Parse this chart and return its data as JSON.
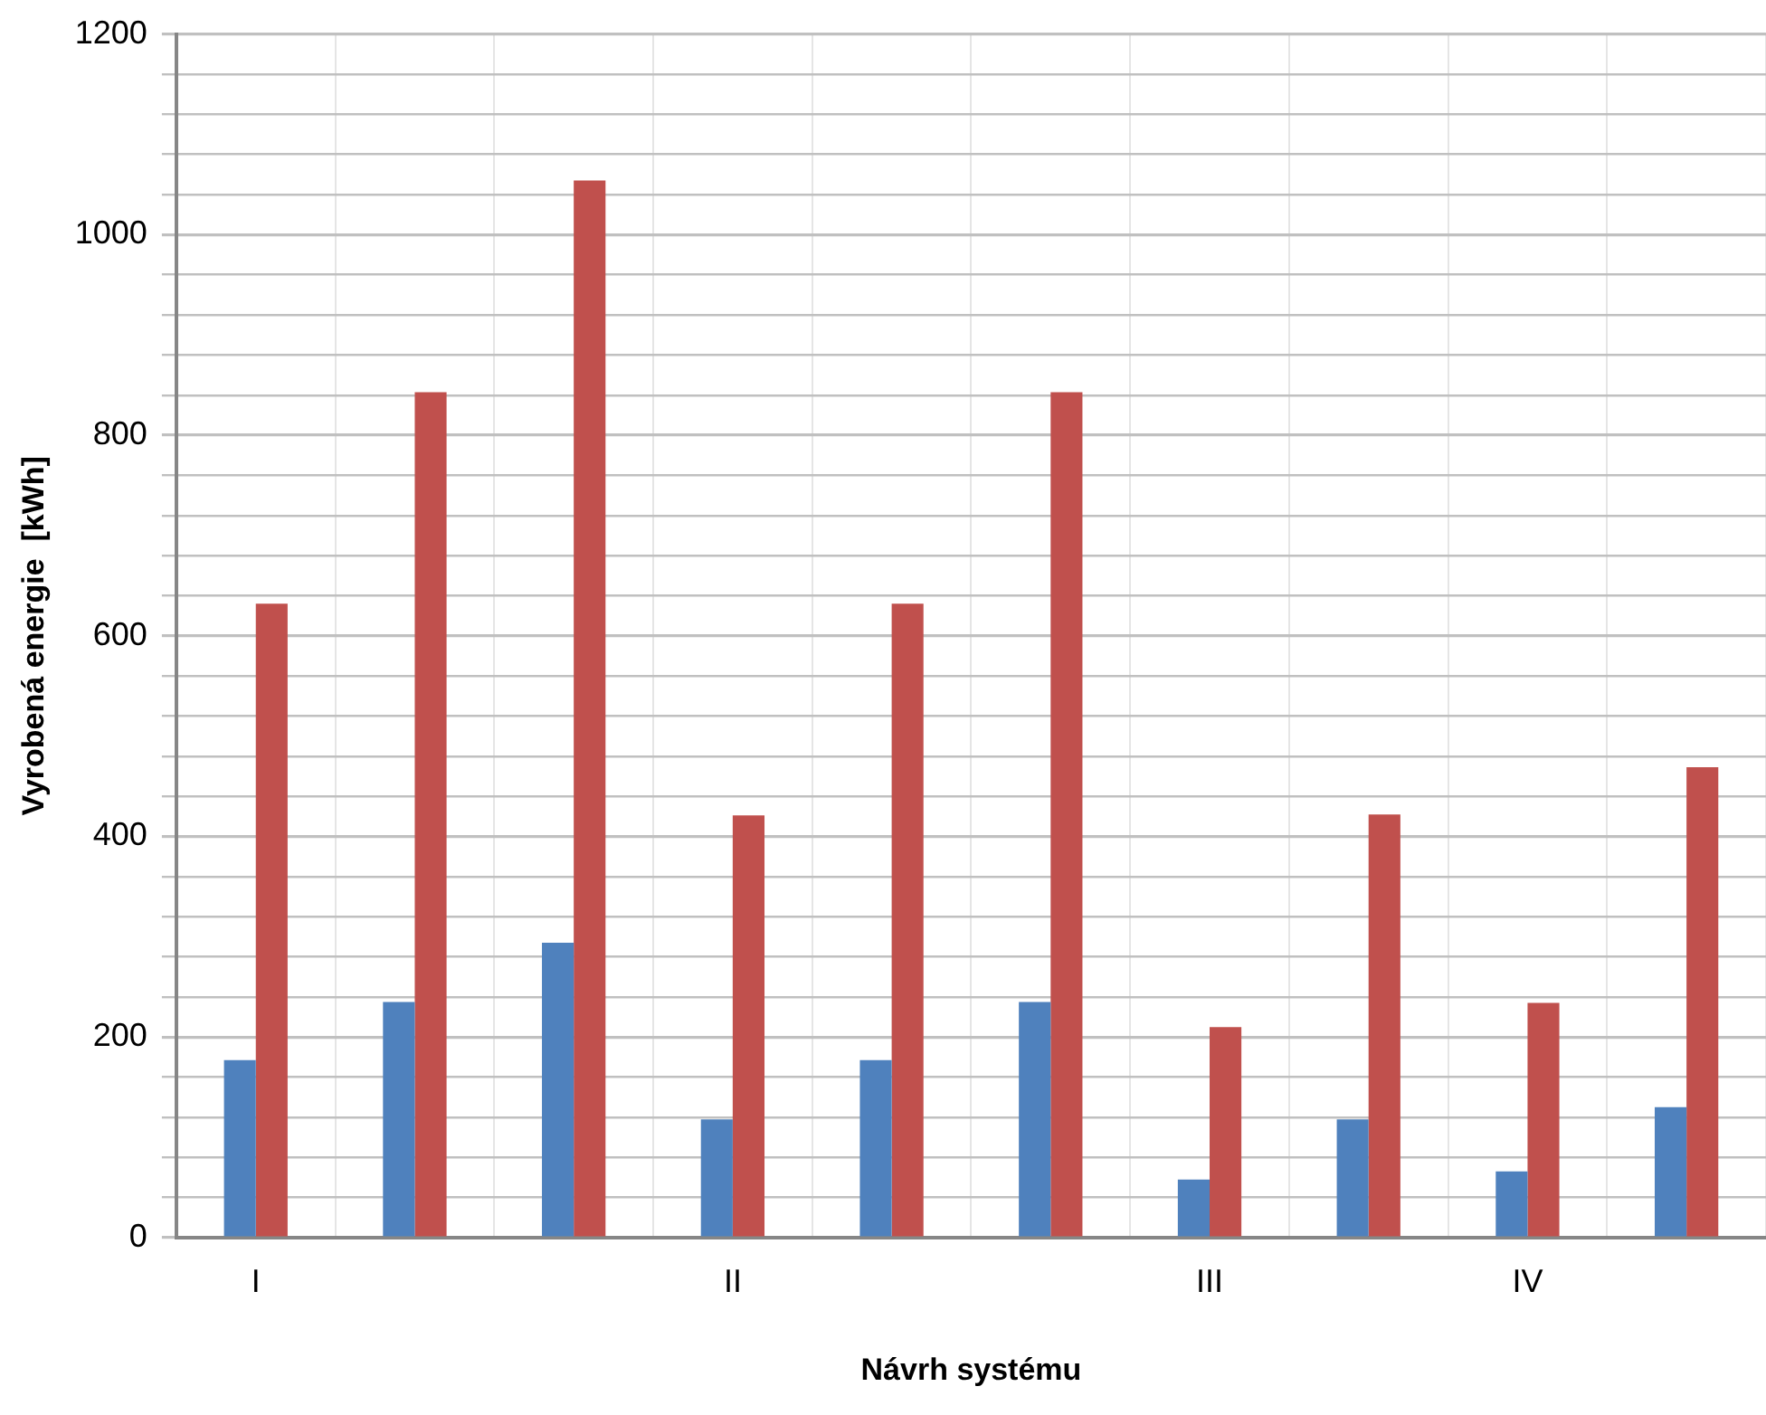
{
  "chart_data": {
    "type": "bar",
    "xlabel": "Návrh systému",
    "ylabel": "Vyrobená energie  [kWh]",
    "categories": [
      "I",
      null,
      null,
      "II",
      null,
      null,
      "III",
      null,
      "IV",
      null
    ],
    "series": [
      {
        "color": "#4f81bd",
        "values": [
          177,
          235,
          294,
          118,
          177,
          235,
          58,
          118,
          66,
          130
        ]
      },
      {
        "color": "#c0504d",
        "values": [
          632,
          843,
          1054,
          421,
          632,
          843,
          210,
          422,
          234,
          469
        ]
      }
    ],
    "ylim": [
      0,
      1200
    ],
    "yticks": [
      0,
      {
        "value": 40,
        "label": null
      },
      {
        "value": 80,
        "label": null
      },
      {
        "value": 120,
        "label": null
      },
      {
        "value": 160,
        "label": null
      },
      200,
      {
        "value": 240,
        "label": null
      },
      {
        "value": 280,
        "label": null
      },
      {
        "value": 320,
        "label": null
      },
      {
        "value": 360,
        "label": null
      },
      400,
      {
        "value": 440,
        "label": null
      },
      {
        "value": 480,
        "label": null
      },
      {
        "value": 520,
        "label": null
      },
      {
        "value": 560,
        "label": null
      },
      600,
      {
        "value": 640,
        "label": null
      },
      {
        "value": 680,
        "label": null
      },
      {
        "value": 720,
        "label": null
      },
      {
        "value": 760,
        "label": null
      },
      800,
      {
        "value": 840,
        "label": null
      },
      {
        "value": 880,
        "label": null
      },
      {
        "value": 920,
        "label": null
      },
      {
        "value": 960,
        "label": null
      },
      1000,
      {
        "value": 1040,
        "label": null
      },
      {
        "value": 1080,
        "label": null
      },
      {
        "value": 1120,
        "label": null
      },
      {
        "value": 1160,
        "label": null
      },
      1200
    ],
    "grid": true,
    "legend": false
  }
}
